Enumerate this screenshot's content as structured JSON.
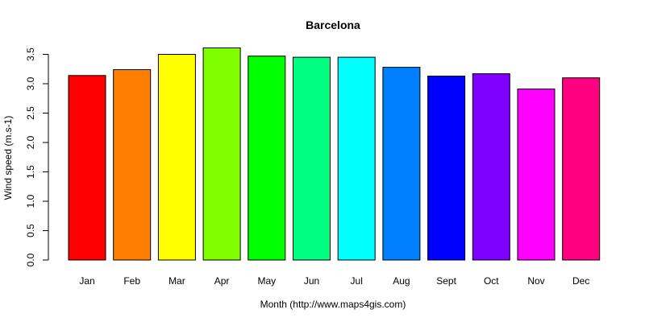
{
  "chart_data": {
    "type": "bar",
    "title": "Barcelona",
    "xlabel": "Month (http://www.maps4gis.com)",
    "ylabel": "Wind speed (m.s-1)",
    "categories": [
      "Jan",
      "Feb",
      "Mar",
      "Apr",
      "May",
      "Jun",
      "Jul",
      "Aug",
      "Sept",
      "Oct",
      "Nov",
      "Dec"
    ],
    "values": [
      3.14,
      3.24,
      3.5,
      3.61,
      3.47,
      3.45,
      3.45,
      3.28,
      3.13,
      3.17,
      2.91,
      3.1
    ],
    "colors": [
      "#ff0000",
      "#ff8000",
      "#ffff00",
      "#80ff00",
      "#00ff00",
      "#00ff80",
      "#00ffff",
      "#0080ff",
      "#0000ff",
      "#8000ff",
      "#ff00ff",
      "#ff0080"
    ],
    "yticks": [
      "0.0",
      "0.5",
      "1.0",
      "1.5",
      "2.0",
      "2.5",
      "3.0",
      "3.5"
    ],
    "ylim": [
      0,
      3.5
    ],
    "grid": false,
    "legend": "none"
  }
}
